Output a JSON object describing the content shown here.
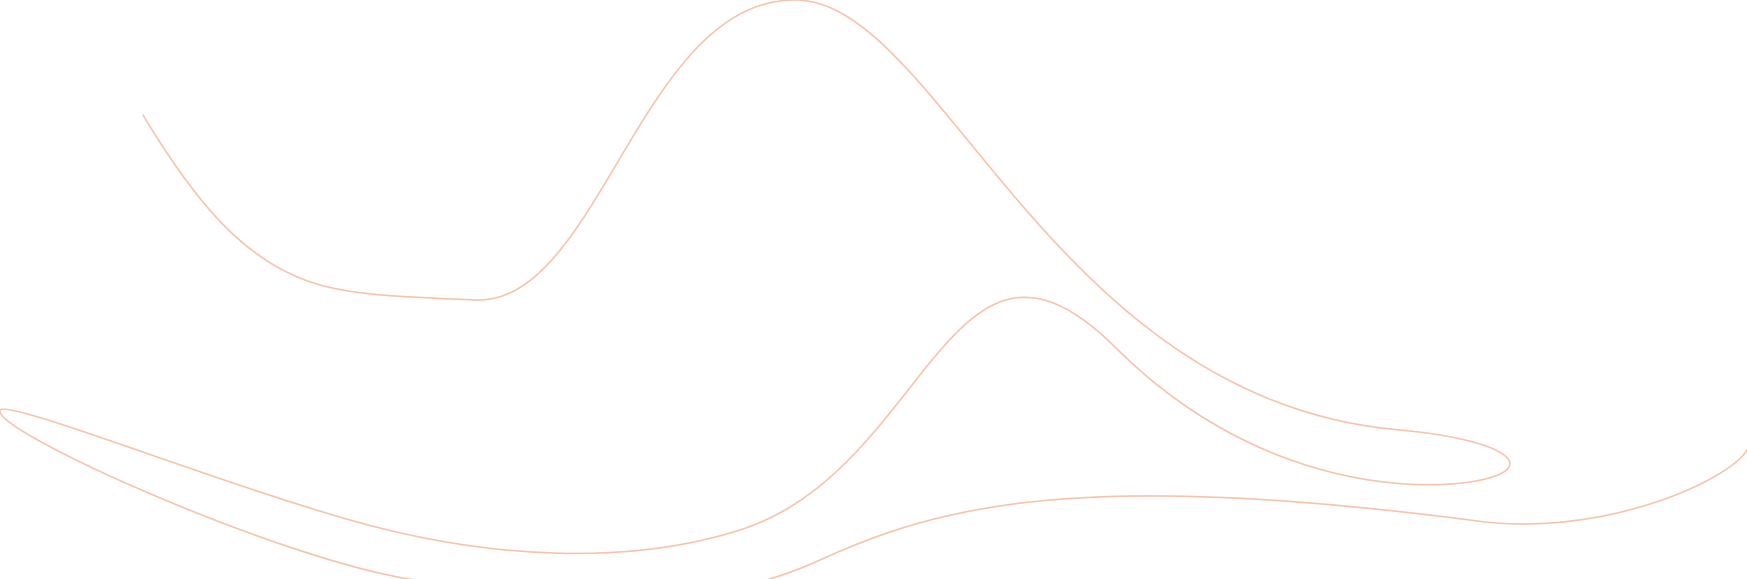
{
  "decoration": {
    "name": "wavy-line-art",
    "stroke_color": "#F6C2A8"
  }
}
